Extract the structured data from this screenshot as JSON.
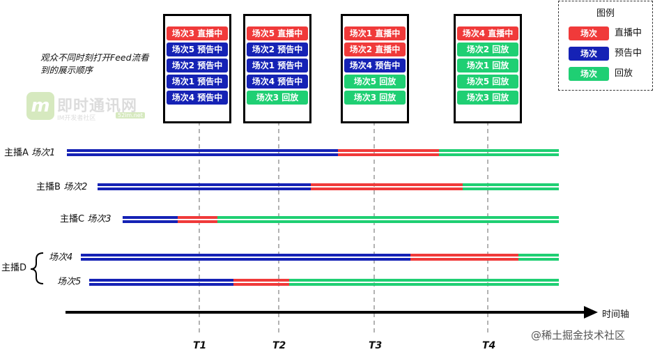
{
  "colors": {
    "live": "#f03a3a",
    "preview": "#1522b5",
    "replay": "#1fcf73"
  },
  "legend": {
    "title": "图例",
    "items": [
      {
        "chip": "场次",
        "status": "live",
        "text": "直播中"
      },
      {
        "chip": "场次",
        "status": "preview",
        "text": "预告中"
      },
      {
        "chip": "场次",
        "status": "replay",
        "text": "回放"
      }
    ]
  },
  "note": "观众不同时刻打开Feed流看到的展示顺序",
  "watermark": {
    "name": "即时通讯网",
    "sub": "IM开发者社区",
    "url": "52im.net"
  },
  "snapshots": [
    {
      "time": "T1",
      "items": [
        {
          "label": "场次3 直播中",
          "status": "live"
        },
        {
          "label": "场次5 预告中",
          "status": "preview"
        },
        {
          "label": "场次2 预告中",
          "status": "preview"
        },
        {
          "label": "场次1 预告中",
          "status": "preview"
        },
        {
          "label": "场次4 预告中",
          "status": "preview"
        }
      ]
    },
    {
      "time": "T2",
      "items": [
        {
          "label": "场次5 直播中",
          "status": "live"
        },
        {
          "label": "场次2 预告中",
          "status": "preview"
        },
        {
          "label": "场次1 预告中",
          "status": "preview"
        },
        {
          "label": "场次4 预告中",
          "status": "preview"
        },
        {
          "label": "场次3 回放",
          "status": "replay"
        }
      ]
    },
    {
      "time": "T3",
      "items": [
        {
          "label": "场次1 直播中",
          "status": "live"
        },
        {
          "label": "场次2 直播中",
          "status": "live"
        },
        {
          "label": "场次4 预告中",
          "status": "preview"
        },
        {
          "label": "场次5 回放",
          "status": "replay"
        },
        {
          "label": "场次3 回放",
          "status": "replay"
        }
      ]
    },
    {
      "time": "T4",
      "items": [
        {
          "label": "场次4 直播中",
          "status": "live"
        },
        {
          "label": "场次2 回放",
          "status": "replay"
        },
        {
          "label": "场次1 回放",
          "status": "replay"
        },
        {
          "label": "场次5 回放",
          "status": "replay"
        },
        {
          "label": "场次3 回放",
          "status": "replay"
        }
      ]
    }
  ],
  "rows": [
    {
      "anchor": "主播A",
      "session": "场次1",
      "segments": [
        {
          "status": "preview"
        },
        {
          "status": "live"
        },
        {
          "status": "replay"
        }
      ]
    },
    {
      "anchor": "主播B",
      "session": "场次2",
      "segments": [
        {
          "status": "preview"
        },
        {
          "status": "live"
        },
        {
          "status": "replay"
        }
      ]
    },
    {
      "anchor": "主播C",
      "session": "场次3",
      "segments": [
        {
          "status": "preview"
        },
        {
          "status": "live"
        },
        {
          "status": "replay"
        }
      ]
    },
    {
      "anchor": "主播D",
      "session": "场次4",
      "segments": [
        {
          "status": "preview"
        },
        {
          "status": "live"
        },
        {
          "status": "replay"
        }
      ]
    },
    {
      "anchor": "主播D",
      "session": "场次5",
      "segments": [
        {
          "status": "preview"
        },
        {
          "status": "live"
        },
        {
          "status": "replay"
        }
      ]
    }
  ],
  "axis_label": "时间轴",
  "footer": "@稀土掘金技术社区"
}
